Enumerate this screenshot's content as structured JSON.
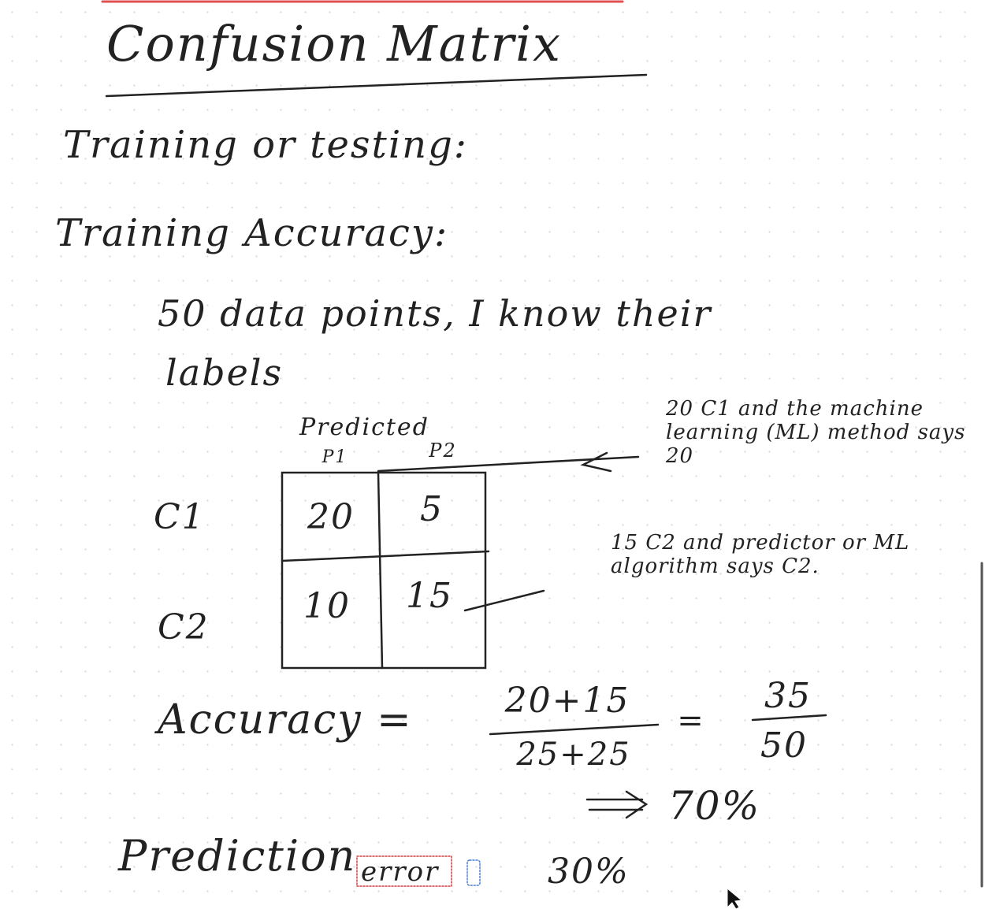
{
  "title": "Confusion Matrix",
  "heading": "Training or testing:",
  "subheading": "Training Accuracy:",
  "note": [
    "50 data points, I know their",
    "labels"
  ],
  "matrix": {
    "header": "Predicted",
    "columns": [
      "P1",
      "P2"
    ],
    "rows": [
      {
        "label": "C1",
        "cells": [
          "20",
          "5"
        ]
      },
      {
        "label": "C2",
        "cells": [
          "10",
          "15"
        ]
      }
    ]
  },
  "annotations": [
    "20 C1 and the machine learning (ML) method says 20",
    "15 C2 and predictor or ML algorithm says C2."
  ],
  "accuracy": {
    "label": "Accuracy =",
    "numerator": "20+15",
    "denominator": "25+25",
    "equals": "=",
    "simplified_numerator": "35",
    "simplified_denominator": "50",
    "result": "70%"
  },
  "error": {
    "label": "Prediction",
    "word": "error",
    "value": "30%"
  }
}
